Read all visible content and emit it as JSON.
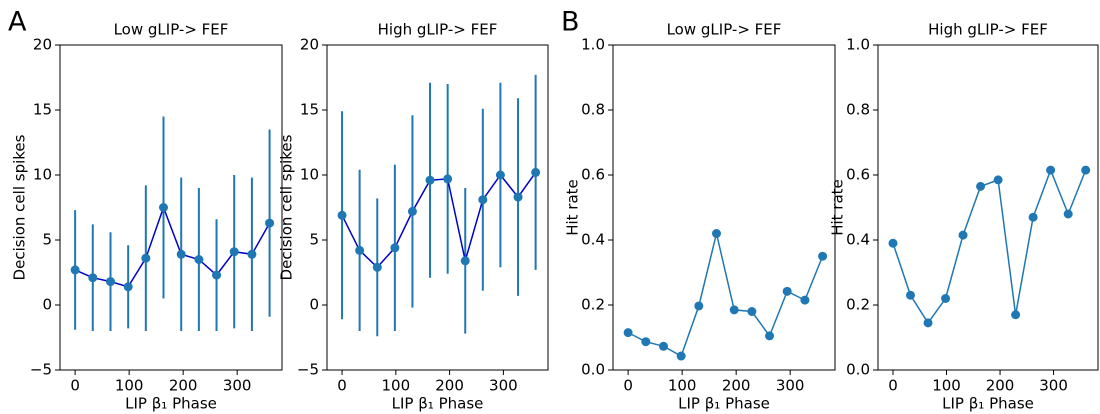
{
  "chart_data": [
    {
      "type": "errorbar",
      "panel_label": "A",
      "title": "Low gLIP-> FEF",
      "x_label": "LIP β₁ Phase",
      "y_label": "Decision cell spikes",
      "x": [
        0,
        32.7,
        65.5,
        98.2,
        130.9,
        163.6,
        196.4,
        229.1,
        261.8,
        294.5,
        327.3,
        360
      ],
      "series": [
        {
          "color": "#1f77b4",
          "line_color": "#0000cc",
          "values": [
            2.7,
            2.1,
            1.8,
            1.4,
            3.6,
            7.5,
            3.9,
            3.5,
            2.3,
            4.1,
            3.9,
            6.3
          ],
          "errors": [
            4.6,
            4.1,
            3.8,
            3.2,
            5.6,
            7.0,
            5.9,
            5.5,
            4.3,
            5.9,
            5.9,
            7.2
          ]
        }
      ],
      "xlim": [
        -28,
        383
      ],
      "xticks": [
        0,
        100,
        200,
        300
      ],
      "ylim": [
        -5,
        20
      ],
      "yticks": [
        {
          "value": -5,
          "label": "−5"
        },
        0,
        5,
        10,
        15,
        20
      ]
    },
    {
      "type": "errorbar",
      "title": "High gLIP-> FEF",
      "x_label": "LIP β₁ Phase",
      "y_label": "Decision cell spikes",
      "x": [
        0,
        32.7,
        65.5,
        98.2,
        130.9,
        163.6,
        196.4,
        229.1,
        261.8,
        294.5,
        327.3,
        360
      ],
      "series": [
        {
          "color": "#1f77b4",
          "line_color": "#0000cc",
          "values": [
            6.9,
            4.2,
            2.9,
            4.4,
            7.2,
            9.6,
            9.7,
            3.4,
            8.1,
            10.0,
            8.3,
            10.2
          ],
          "errors": [
            8.0,
            6.2,
            5.3,
            6.4,
            7.4,
            7.5,
            7.3,
            5.6,
            7.0,
            7.1,
            7.6,
            7.5
          ]
        }
      ],
      "xlim": [
        -28,
        383
      ],
      "xticks": [
        0,
        100,
        200,
        300
      ],
      "ylim": [
        -5,
        20
      ],
      "yticks": [
        {
          "value": -5,
          "label": "−5"
        },
        0,
        5,
        10,
        15,
        20
      ]
    },
    {
      "type": "line",
      "panel_label": "B",
      "title": "Low gLIP-> FEF",
      "x_label": "LIP β₁ Phase",
      "y_label": "Hit rate",
      "x": [
        0,
        32.7,
        65.5,
        98.2,
        130.9,
        163.6,
        196.4,
        229.1,
        261.8,
        294.5,
        327.3,
        360
      ],
      "series": [
        {
          "color": "#1f77b4",
          "line_color": "#1f77b4",
          "values": [
            0.115,
            0.087,
            0.073,
            0.043,
            0.197,
            0.42,
            0.185,
            0.18,
            0.105,
            0.242,
            0.215,
            0.35
          ]
        }
      ],
      "xlim": [
        -28,
        383
      ],
      "xticks": [
        0,
        100,
        200,
        300
      ],
      "ylim": [
        0,
        1
      ],
      "yticks": [
        {
          "value": 0,
          "label": "0.0"
        },
        {
          "value": 0.2,
          "label": "0.2"
        },
        {
          "value": 0.4,
          "label": "0.4"
        },
        {
          "value": 0.6,
          "label": "0.6"
        },
        {
          "value": 0.8,
          "label": "0.8"
        },
        {
          "value": 1,
          "label": "1.0"
        }
      ]
    },
    {
      "type": "line",
      "title": "High gLIP-> FEF",
      "x_label": "LIP β₁ Phase",
      "y_label": "Hit rate",
      "x": [
        0,
        32.7,
        65.5,
        98.2,
        130.9,
        163.6,
        196.4,
        229.1,
        261.8,
        294.5,
        327.3,
        360
      ],
      "series": [
        {
          "color": "#1f77b4",
          "line_color": "#1f77b4",
          "values": [
            0.39,
            0.23,
            0.145,
            0.22,
            0.415,
            0.565,
            0.585,
            0.17,
            0.47,
            0.615,
            0.48,
            0.615
          ]
        }
      ],
      "xlim": [
        -28,
        383
      ],
      "xticks": [
        0,
        100,
        200,
        300
      ],
      "ylim": [
        0,
        1
      ],
      "yticks": [
        {
          "value": 0,
          "label": "0.0"
        },
        {
          "value": 0.2,
          "label": "0.2"
        },
        {
          "value": 0.4,
          "label": "0.4"
        },
        {
          "value": 0.6,
          "label": "0.6"
        },
        {
          "value": 0.8,
          "label": "0.8"
        },
        {
          "value": 1,
          "label": "1.0"
        }
      ]
    }
  ]
}
